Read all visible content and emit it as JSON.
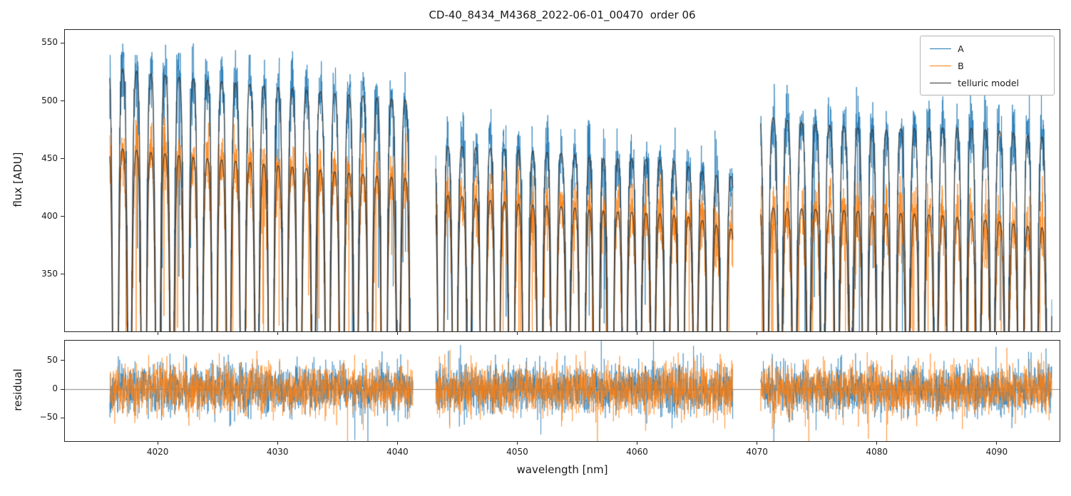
{
  "chart_data": {
    "type": "line",
    "title": "CD-40_8434_M4368_2022-06-01_00470  order 06",
    "xlabel": "wavelength [nm]",
    "xlim": [
      4012.2,
      4095.3
    ],
    "xticks": [
      4020,
      4030,
      4040,
      4050,
      4060,
      4070,
      4080,
      4090
    ],
    "xtick_labels": [
      "4020",
      "4030",
      "4040",
      "4050",
      "4060",
      "4070",
      "4080",
      "4090"
    ],
    "grid": false,
    "legend_position": "upper right",
    "segments": [
      [
        4016.0,
        4041.3
      ],
      [
        4043.2,
        4068.0
      ],
      [
        4070.3,
        4094.6
      ]
    ],
    "panels": [
      {
        "name": "flux",
        "ylabel": "flux [ADU]",
        "ylim": [
          300,
          562
        ],
        "yticks": [
          350,
          400,
          450,
          500,
          550
        ],
        "ytick_labels": [
          "350",
          "400",
          "450",
          "500",
          "550"
        ]
      },
      {
        "name": "residual",
        "ylabel": "residual",
        "ylim": [
          -92,
          86
        ],
        "yticks": [
          -50,
          0,
          50
        ],
        "ytick_labels": [
          "−50",
          "0",
          "50"
        ],
        "zero_line": 0
      }
    ],
    "series": [
      {
        "name": "A",
        "color": "#1f77b4",
        "baseline": [
          [
            4016.0,
            531
          ],
          [
            4022,
            522
          ],
          [
            4028,
            516
          ],
          [
            4035,
            508
          ],
          [
            4041.3,
            502
          ],
          [
            4043.2,
            463
          ],
          [
            4050,
            460
          ],
          [
            4058,
            452
          ],
          [
            4063,
            450
          ],
          [
            4066,
            438
          ],
          [
            4068,
            436
          ],
          [
            4070.3,
            489
          ],
          [
            4074,
            482
          ],
          [
            4080,
            477
          ],
          [
            4087,
            479
          ],
          [
            4094.6,
            470
          ]
        ]
      },
      {
        "name": "B",
        "color": "#ff7f0e",
        "baseline": [
          [
            4016.0,
            462
          ],
          [
            4022,
            454
          ],
          [
            4028,
            448
          ],
          [
            4035,
            440
          ],
          [
            4041.3,
            434
          ],
          [
            4043.2,
            421
          ],
          [
            4050,
            413
          ],
          [
            4058,
            406
          ],
          [
            4064,
            402
          ],
          [
            4068,
            390
          ],
          [
            4070.3,
            409
          ],
          [
            4078,
            406
          ],
          [
            4086,
            402
          ],
          [
            4094.6,
            391
          ]
        ]
      },
      {
        "name": "telluric model",
        "color": "#3a342e"
      }
    ],
    "telluric": {
      "dip_spacing": 1.18,
      "dip_sigma": 0.17,
      "phase": 4015.3
    },
    "noise": {
      "flux_sigma": 14,
      "spike_chance": 0.02,
      "residual_sigma": 21
    }
  }
}
